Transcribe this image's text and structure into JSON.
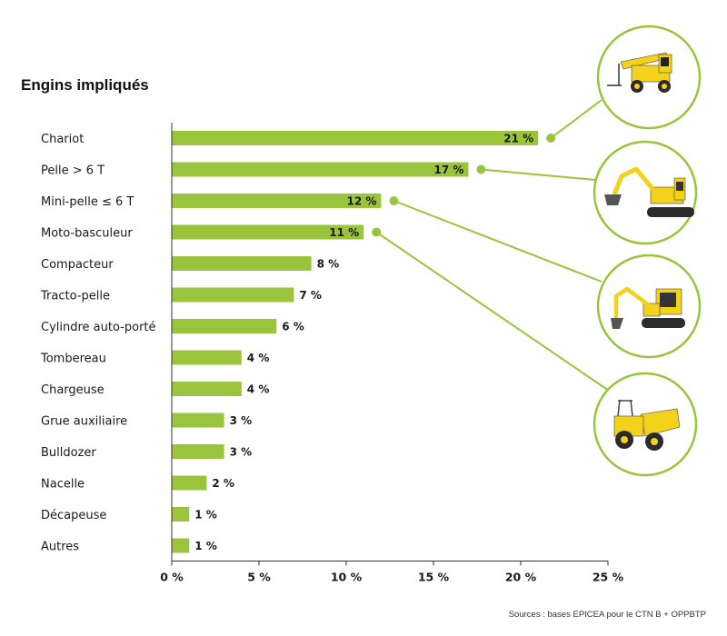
{
  "title": "Engins impliqués",
  "source": "Sources : bases EPICEA pour le CTN B + OPPBTP",
  "colors": {
    "bar": "#9ac43c",
    "axis": "#333333",
    "circle": "#9ac43c",
    "machine": "#f2d21a"
  },
  "chart_data": {
    "type": "bar",
    "orientation": "horizontal",
    "title": "Engins impliqués",
    "categories": [
      "Chariot",
      "Pelle > 6 T",
      "Mini-pelle ≤ 6 T",
      "Moto-basculeur",
      "Compacteur",
      "Tracto-pelle",
      "Cylindre auto-porté",
      "Tombereau",
      "Chargeuse",
      "Grue auxiliaire",
      "Bulldozer",
      "Nacelle",
      "Décapeuse",
      "Autres"
    ],
    "values": [
      21,
      17,
      12,
      11,
      8,
      7,
      6,
      4,
      4,
      3,
      3,
      2,
      1,
      1
    ],
    "value_labels": [
      "21 %",
      "17 %",
      "12 %",
      "11 %",
      "8 %",
      "7 %",
      "6 %",
      "4 %",
      "4 %",
      "3 %",
      "3 %",
      "2 %",
      "1 %",
      "1 %"
    ],
    "xlim": [
      0,
      25
    ],
    "xticks": [
      0,
      5,
      10,
      15,
      20,
      25
    ],
    "xtick_labels": [
      "0 %",
      "5 %",
      "10 %",
      "15 %",
      "20 %",
      "25 %"
    ],
    "xlabel": "",
    "ylabel": "",
    "grid": false,
    "callouts": [
      {
        "category": "Chariot",
        "icon": "telehandler-icon"
      },
      {
        "category": "Pelle > 6 T",
        "icon": "excavator-icon"
      },
      {
        "category": "Mini-pelle ≤ 6 T",
        "icon": "mini-excavator-icon"
      },
      {
        "category": "Moto-basculeur",
        "icon": "dumper-icon"
      }
    ]
  }
}
